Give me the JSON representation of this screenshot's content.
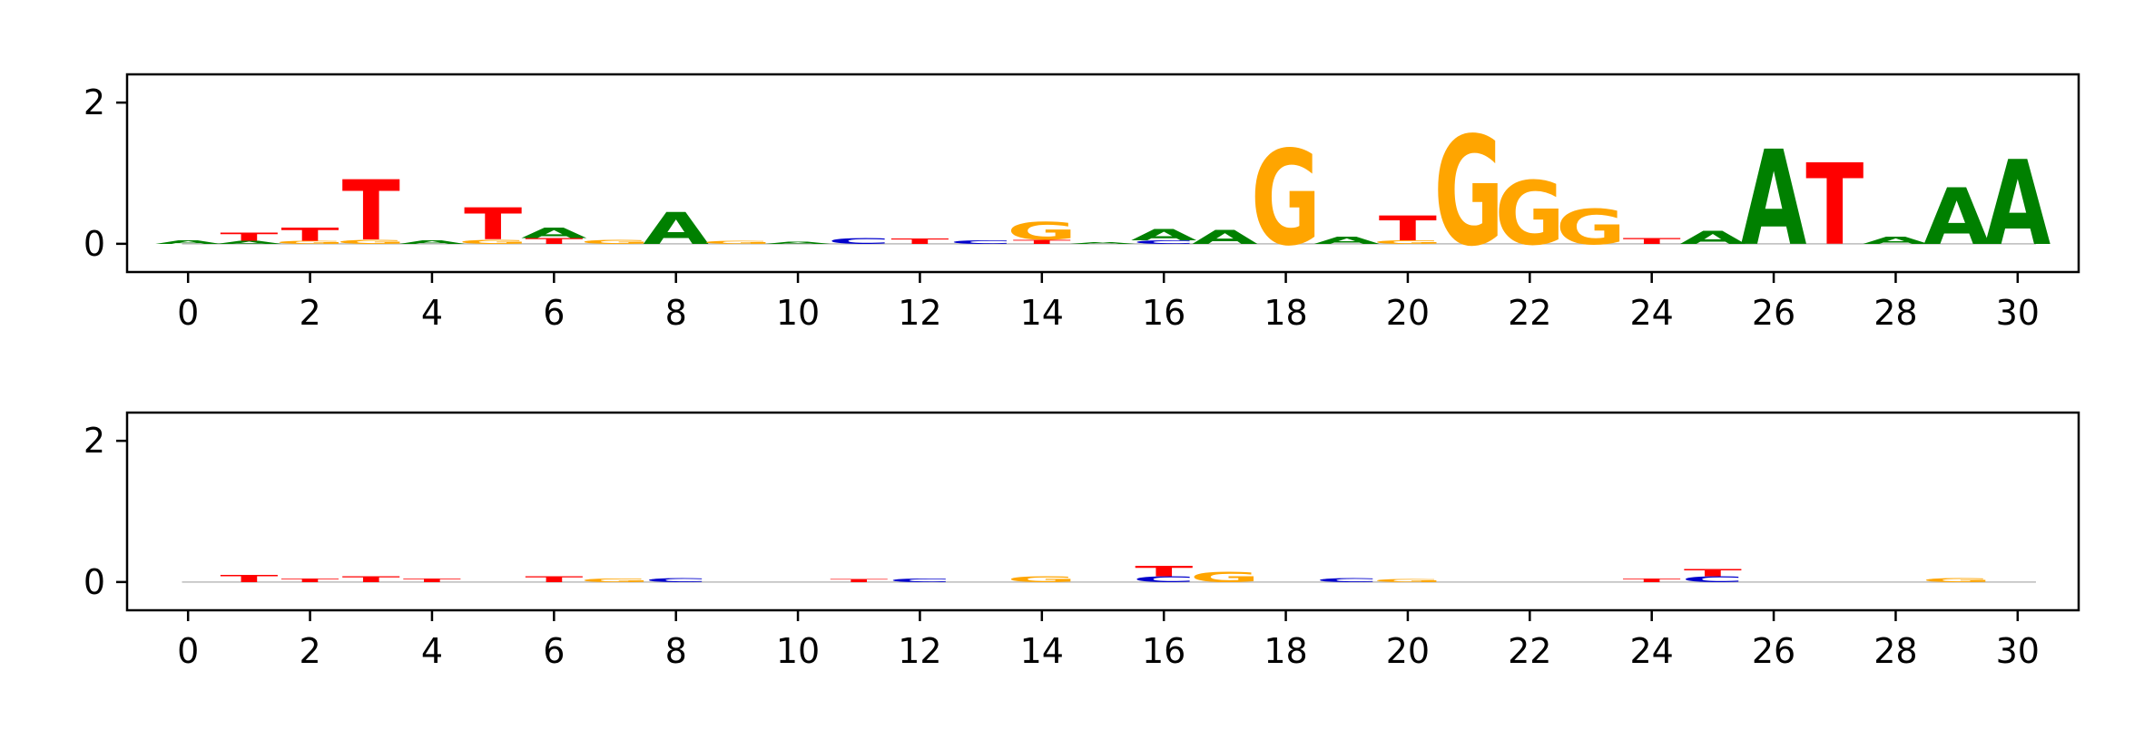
{
  "chart_data": [
    {
      "type": "sequence_logo",
      "title": "",
      "xlabel": "",
      "ylabel": "",
      "xlim": [
        -1,
        31
      ],
      "ylim": [
        -0.4,
        2.4
      ],
      "xticks": [
        "0",
        "2",
        "4",
        "6",
        "8",
        "10",
        "12",
        "14",
        "16",
        "18",
        "20",
        "22",
        "24",
        "26",
        "28",
        "30"
      ],
      "yticks": [
        "0",
        "2"
      ],
      "colors": {
        "A": "#008000",
        "C": "#0000cc",
        "G": "#ffa500",
        "T": "#ff0000"
      },
      "positions": [
        {
          "x": 0,
          "letters": [
            {
              "base": "A",
              "height": 0.05
            }
          ]
        },
        {
          "x": 1,
          "letters": [
            {
              "base": "A",
              "height": 0.04
            },
            {
              "base": "T",
              "height": 0.12
            }
          ]
        },
        {
          "x": 2,
          "letters": [
            {
              "base": "G",
              "height": 0.04
            },
            {
              "base": "T",
              "height": 0.18
            }
          ]
        },
        {
          "x": 3,
          "letters": [
            {
              "base": "G",
              "height": 0.06
            },
            {
              "base": "T",
              "height": 0.85
            }
          ]
        },
        {
          "x": 4,
          "letters": [
            {
              "base": "A",
              "height": 0.05
            }
          ]
        },
        {
          "x": 5,
          "letters": [
            {
              "base": "G",
              "height": 0.06
            },
            {
              "base": "T",
              "height": 0.45
            }
          ]
        },
        {
          "x": 6,
          "letters": [
            {
              "base": "T",
              "height": 0.08
            },
            {
              "base": "A",
              "height": 0.15
            }
          ]
        },
        {
          "x": 7,
          "letters": [
            {
              "base": "G",
              "height": 0.06
            }
          ]
        },
        {
          "x": 8,
          "letters": [
            {
              "base": "A",
              "height": 0.45
            }
          ]
        },
        {
          "x": 9,
          "letters": [
            {
              "base": "G",
              "height": 0.04
            }
          ]
        },
        {
          "x": 10,
          "letters": [
            {
              "base": "A",
              "height": 0.03
            }
          ]
        },
        {
          "x": 11,
          "letters": [
            {
              "base": "C",
              "height": 0.08
            }
          ]
        },
        {
          "x": 12,
          "letters": [
            {
              "base": "T",
              "height": 0.07
            }
          ]
        },
        {
          "x": 13,
          "letters": [
            {
              "base": "C",
              "height": 0.05
            }
          ]
        },
        {
          "x": 14,
          "letters": [
            {
              "base": "T",
              "height": 0.06
            },
            {
              "base": "G",
              "height": 0.25
            }
          ]
        },
        {
          "x": 15,
          "letters": [
            {
              "base": "A",
              "height": 0.02
            }
          ]
        },
        {
          "x": 16,
          "letters": [
            {
              "base": "C",
              "height": 0.05
            },
            {
              "base": "A",
              "height": 0.16
            }
          ]
        },
        {
          "x": 17,
          "letters": [
            {
              "base": "A",
              "height": 0.2
            }
          ]
        },
        {
          "x": 18,
          "letters": [
            {
              "base": "G",
              "height": 1.35
            }
          ]
        },
        {
          "x": 19,
          "letters": [
            {
              "base": "A",
              "height": 0.1
            }
          ]
        },
        {
          "x": 20,
          "letters": [
            {
              "base": "G",
              "height": 0.05
            },
            {
              "base": "T",
              "height": 0.35
            }
          ]
        },
        {
          "x": 21,
          "letters": [
            {
              "base": "G",
              "height": 1.55
            }
          ]
        },
        {
          "x": 22,
          "letters": [
            {
              "base": "G",
              "height": 0.9
            }
          ]
        },
        {
          "x": 23,
          "letters": [
            {
              "base": "G",
              "height": 0.5
            }
          ]
        },
        {
          "x": 24,
          "letters": [
            {
              "base": "T",
              "height": 0.08
            }
          ]
        },
        {
          "x": 25,
          "letters": [
            {
              "base": "A",
              "height": 0.18
            }
          ]
        },
        {
          "x": 26,
          "letters": [
            {
              "base": "A",
              "height": 1.35
            }
          ]
        },
        {
          "x": 27,
          "letters": [
            {
              "base": "T",
              "height": 1.15
            }
          ]
        },
        {
          "x": 28,
          "letters": [
            {
              "base": "A",
              "height": 0.1
            }
          ]
        },
        {
          "x": 29,
          "letters": [
            {
              "base": "A",
              "height": 0.8
            }
          ]
        },
        {
          "x": 30,
          "letters": [
            {
              "base": "A",
              "height": 1.2
            }
          ]
        }
      ]
    },
    {
      "type": "sequence_logo",
      "title": "",
      "xlabel": "",
      "ylabel": "",
      "xlim": [
        -1,
        31
      ],
      "ylim": [
        -0.4,
        2.4
      ],
      "xticks": [
        "0",
        "2",
        "4",
        "6",
        "8",
        "10",
        "12",
        "14",
        "16",
        "18",
        "20",
        "22",
        "24",
        "26",
        "28",
        "30"
      ],
      "yticks": [
        "0",
        "2"
      ],
      "colors": {
        "A": "#008000",
        "C": "#0000cc",
        "G": "#ffa500",
        "T": "#ff0000"
      },
      "positions": [
        {
          "x": 1,
          "letters": [
            {
              "base": "T",
              "height": 0.1
            }
          ]
        },
        {
          "x": 2,
          "letters": [
            {
              "base": "T",
              "height": 0.05
            }
          ]
        },
        {
          "x": 3,
          "letters": [
            {
              "base": "T",
              "height": 0.08
            }
          ]
        },
        {
          "x": 4,
          "letters": [
            {
              "base": "T",
              "height": 0.05
            }
          ]
        },
        {
          "x": 6,
          "letters": [
            {
              "base": "T",
              "height": 0.08
            }
          ]
        },
        {
          "x": 7,
          "letters": [
            {
              "base": "G",
              "height": 0.05
            }
          ]
        },
        {
          "x": 8,
          "letters": [
            {
              "base": "C",
              "height": 0.06
            }
          ]
        },
        {
          "x": 11,
          "letters": [
            {
              "base": "T",
              "height": 0.04
            }
          ]
        },
        {
          "x": 12,
          "letters": [
            {
              "base": "C",
              "height": 0.05
            }
          ]
        },
        {
          "x": 14,
          "letters": [
            {
              "base": "G",
              "height": 0.08
            }
          ]
        },
        {
          "x": 16,
          "letters": [
            {
              "base": "C",
              "height": 0.08
            },
            {
              "base": "T",
              "height": 0.15
            }
          ]
        },
        {
          "x": 17,
          "letters": [
            {
              "base": "G",
              "height": 0.15
            }
          ]
        },
        {
          "x": 19,
          "letters": [
            {
              "base": "C",
              "height": 0.06
            }
          ]
        },
        {
          "x": 20,
          "letters": [
            {
              "base": "G",
              "height": 0.04
            }
          ]
        },
        {
          "x": 24,
          "letters": [
            {
              "base": "T",
              "height": 0.05
            }
          ]
        },
        {
          "x": 25,
          "letters": [
            {
              "base": "C",
              "height": 0.08
            },
            {
              "base": "T",
              "height": 0.1
            }
          ]
        },
        {
          "x": 29,
          "letters": [
            {
              "base": "G",
              "height": 0.06
            }
          ]
        }
      ]
    }
  ]
}
